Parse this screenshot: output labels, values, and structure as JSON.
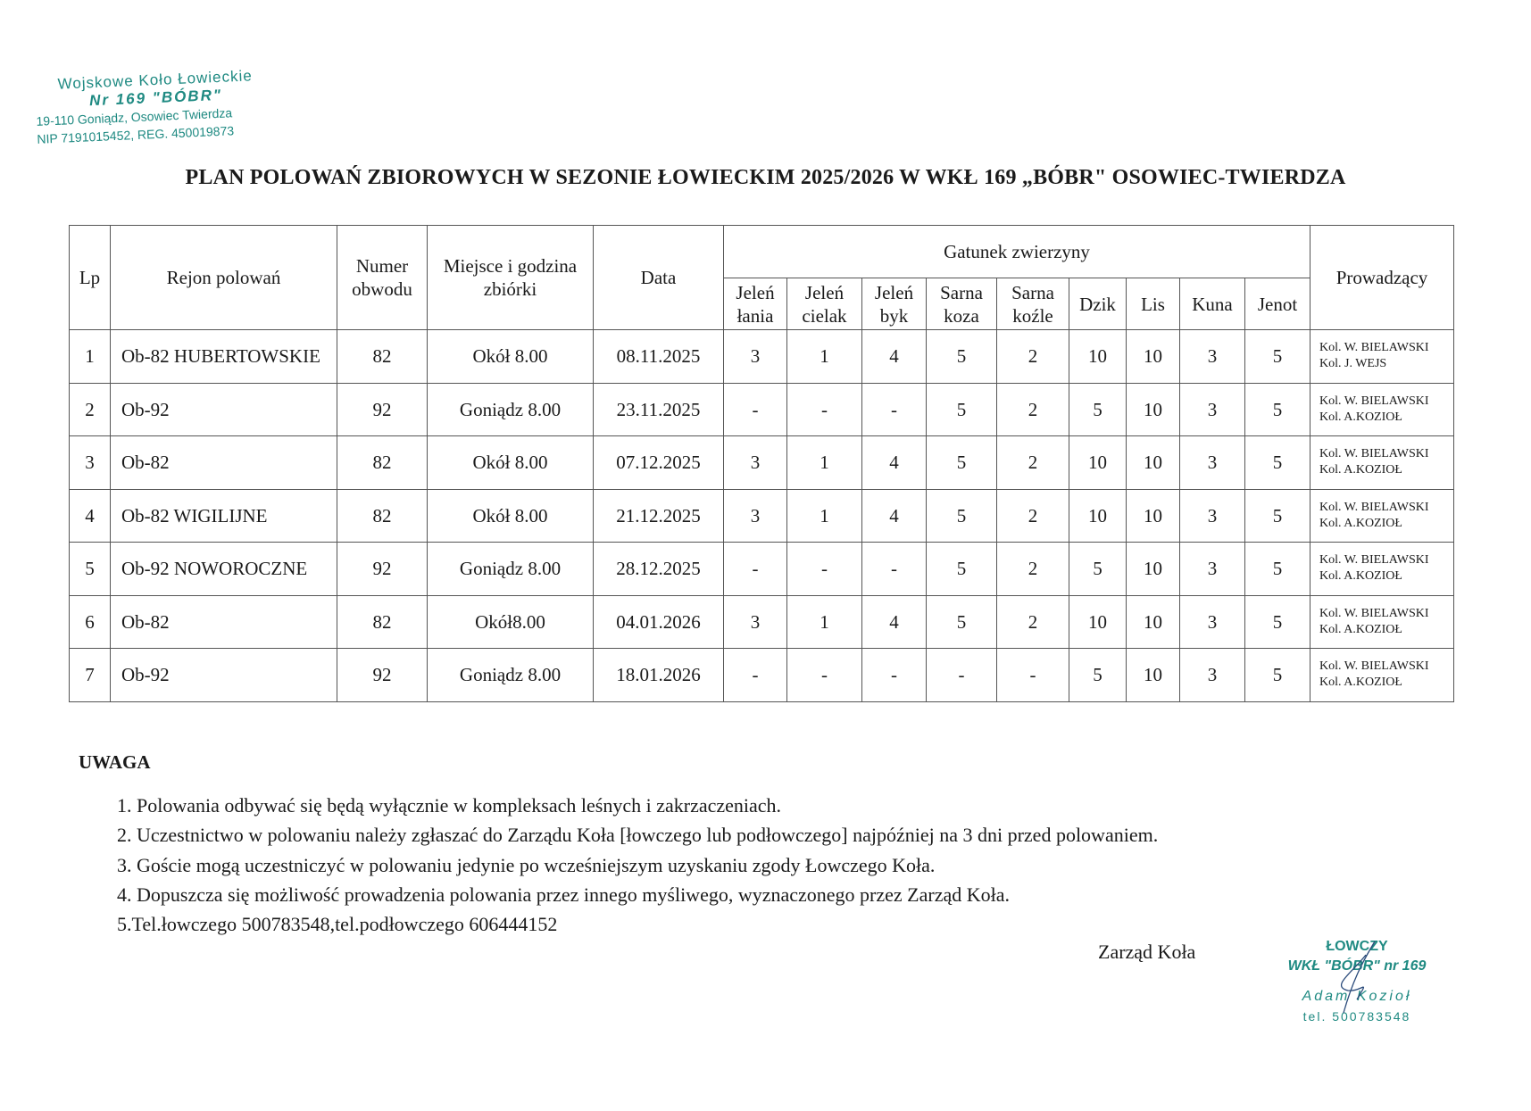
{
  "stamp": {
    "line1": "Wojskowe Koło Łowieckie",
    "line2": "Nr 169 \"BÓBR\"",
    "line3": "19-110 Goniądz, Osowiec Twierdza",
    "line4": "NIP 7191015452, REG. 450019873"
  },
  "title": "PLAN POLOWAŃ ZBIOROWYCH W SEZONIE ŁOWIECKIM 2025/2026 W WKŁ 169 „BÓBR\" OSOWIEC-TWIERDZA",
  "table": {
    "headers": {
      "lp": "Lp",
      "rejon": "Rejon polowań",
      "numer": "Numer obwodu",
      "miejsce": "Miejsce i godzina zbiórki",
      "data": "Data",
      "gatunek": "Gatunek zwierzyny",
      "prowadzacy": "Prowadzący",
      "species": [
        "Jeleń łania",
        "Jeleń cielak",
        "Jeleń byk",
        "Sarna koza",
        "Sarna koźle",
        "Dzik",
        "Lis",
        "Kuna",
        "Jenot"
      ]
    },
    "rows": [
      {
        "lp": "1",
        "rejon": "Ob-82 HUBERTOWSKIE",
        "numer": "82",
        "miejsce": "Okół 8.00",
        "data": "08.11.2025",
        "v": [
          "3",
          "1",
          "4",
          "5",
          "2",
          "10",
          "10",
          "3",
          "5"
        ],
        "p1": "Kol. W. BIELAWSKI",
        "p2": "Kol. J. WEJS"
      },
      {
        "lp": "2",
        "rejon": "Ob-92",
        "numer": "92",
        "miejsce": "Goniądz 8.00",
        "data": "23.11.2025",
        "v": [
          "-",
          "-",
          "-",
          "5",
          "2",
          "5",
          "10",
          "3",
          "5"
        ],
        "p1": "Kol. W. BIELAWSKI",
        "p2": "Kol. A.KOZIOŁ"
      },
      {
        "lp": "3",
        "rejon": "Ob-82",
        "numer": "82",
        "miejsce": "Okół 8.00",
        "data": "07.12.2025",
        "v": [
          "3",
          "1",
          "4",
          "5",
          "2",
          "10",
          "10",
          "3",
          "5"
        ],
        "p1": "Kol. W. BIELAWSKI",
        "p2": "Kol. A.KOZIOŁ"
      },
      {
        "lp": "4",
        "rejon": "Ob-82 WIGILIJNE",
        "numer": "82",
        "miejsce": "Okół 8.00",
        "data": "21.12.2025",
        "v": [
          "3",
          "1",
          "4",
          "5",
          "2",
          "10",
          "10",
          "3",
          "5"
        ],
        "p1": "Kol. W. BIELAWSKI",
        "p2": "Kol. A.KOZIOŁ"
      },
      {
        "lp": "5",
        "rejon": "Ob-92 NOWOROCZNE",
        "numer": "92",
        "miejsce": "Goniądz 8.00",
        "data": "28.12.2025",
        "v": [
          "-",
          "-",
          "-",
          "5",
          "2",
          "5",
          "10",
          "3",
          "5"
        ],
        "p1": "Kol. W. BIELAWSKI",
        "p2": "Kol. A.KOZIOŁ"
      },
      {
        "lp": "6",
        "rejon": "Ob-82",
        "numer": "82",
        "miejsce": "Okół8.00",
        "data": "04.01.2026",
        "v": [
          "3",
          "1",
          "4",
          "5",
          "2",
          "10",
          "10",
          "3",
          "5"
        ],
        "p1": "Kol. W. BIELAWSKI",
        "p2": "Kol. A.KOZIOŁ"
      },
      {
        "lp": "7",
        "rejon": "Ob-92",
        "numer": "92",
        "miejsce": "Goniądz 8.00",
        "data": "18.01.2026",
        "v": [
          "-",
          "-",
          "-",
          "-",
          "-",
          "5",
          "10",
          "3",
          "5"
        ],
        "p1": "Kol. W. BIELAWSKI",
        "p2": "Kol. A.KOZIOŁ"
      }
    ]
  },
  "notes": {
    "heading": "UWAGA",
    "items": [
      "1. Polowania odbywać się będą wyłącznie w kompleksach leśnych i zakrzaczeniach.",
      "2. Uczestnictwo w polowaniu należy zgłaszać do Zarządu Koła [łowczego lub podłowczego] najpóźniej na 3 dni przed polowaniem.",
      "3. Goście mogą uczestniczyć w polowaniu jedynie po wcześniejszym uzyskaniu zgody Łowczego Koła.",
      "4. Dopuszcza się możliwość prowadzenia polowania przez innego myśliwego, wyznaczonego przez Zarząd Koła.",
      "5.Tel.łowczego 500783548,tel.podłowczego 606444152"
    ]
  },
  "signature": {
    "board": "Zarząd Koła",
    "stamp_line1": "ŁOWCZY",
    "stamp_line2": "WKŁ \"BÓBR\" nr 169",
    "stamp_name": "Adam Kozioł",
    "stamp_tel": "tel. 500783548"
  },
  "colors": {
    "stamp": "#1f8a82"
  }
}
